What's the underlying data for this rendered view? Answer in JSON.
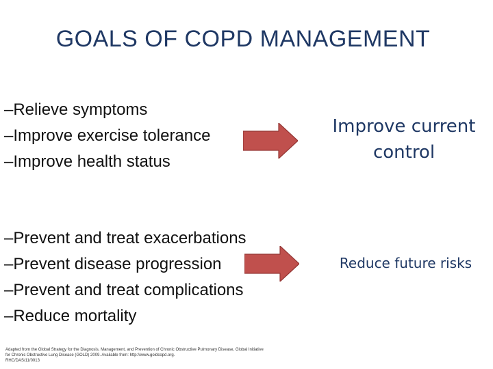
{
  "slide": {
    "title": "GOALS OF COPD MANAGEMENT",
    "group_current": {
      "items": [
        "–Relieve symptoms",
        "–Improve exercise tolerance",
        "–Improve health status"
      ],
      "outcome": "Improve current control"
    },
    "group_future": {
      "items": [
        "–Prevent and treat exacerbations",
        "–Prevent disease progression",
        "–Prevent and treat complications",
        "–Reduce mortality"
      ],
      "outcome": "Reduce future risks"
    },
    "footnote": {
      "line1": "Adapted from the Global Strategy for the Diagnosis, Management, and Prevention of Chronic Obstructive Pulmonary Disease, Global Initiative",
      "line2": "for Chronic Obstructive Lung Disease (GOLD) 2009. Available from: http://www.goldcopd.org.",
      "line3": "RHC/DAS/11/0013"
    },
    "colors": {
      "title": "#1f3864",
      "arrow_fill": "#c0504d",
      "arrow_stroke": "#943634",
      "outcome_text": "#1f3864"
    }
  }
}
